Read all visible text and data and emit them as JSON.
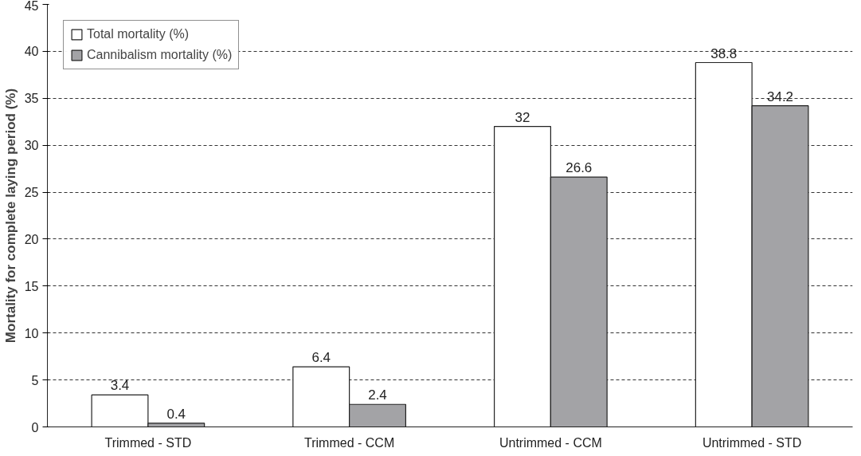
{
  "chart_data": {
    "type": "bar",
    "ylabel": "Mortality for complete laying period (%)",
    "categories": [
      "Trimmed - STD",
      "Trimmed - CCM",
      "Untrimmed - CCM",
      "Untrimmed - STD"
    ],
    "series": [
      {
        "name": "Total mortality (%)",
        "color": "#ffffff",
        "values": [
          3.4,
          6.4,
          32,
          38.8
        ]
      },
      {
        "name": "Cannibalism mortality (%)",
        "color": "#a3a3a6",
        "values": [
          0.4,
          2.4,
          26.6,
          34.2
        ]
      }
    ],
    "ylim": [
      0,
      45
    ],
    "yticks": [
      0,
      5,
      10,
      15,
      20,
      25,
      30,
      35,
      40,
      45
    ],
    "grid": "y",
    "legend": "top left",
    "data_labels": true
  }
}
